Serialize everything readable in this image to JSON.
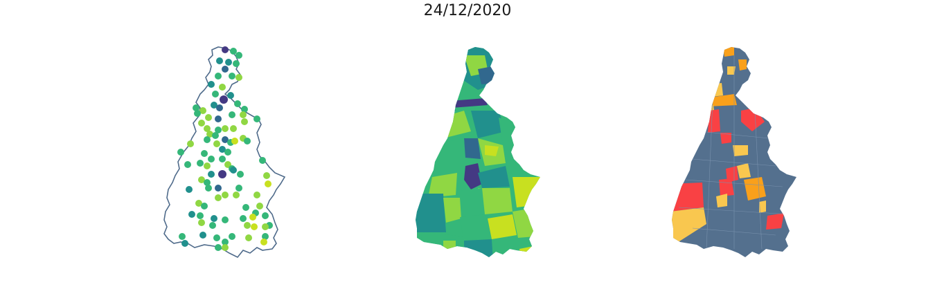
{
  "title": "24/12/2020",
  "colors": {
    "outline": "#4e6a8a",
    "base": "#54708e",
    "viridis": [
      "#443983",
      "#31688e",
      "#21908d",
      "#35b779",
      "#90d743",
      "#c8e020"
    ],
    "alert": [
      "#f9c74f",
      "#f9a01b",
      "#f94144"
    ]
  },
  "panels": [
    {
      "name": "points-map",
      "kind": "proportional symbols"
    },
    {
      "name": "choropleth-map",
      "kind": "choropleth"
    },
    {
      "name": "category-map",
      "kind": "categorical highlight"
    }
  ]
}
